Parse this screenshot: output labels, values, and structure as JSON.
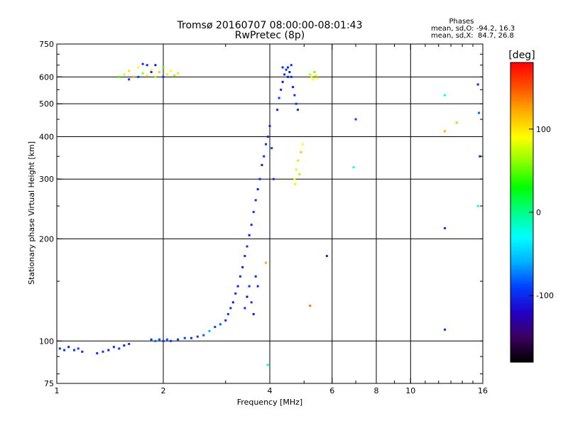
{
  "chart_data": {
    "type": "scatter",
    "title": "Tromsø 20160707 08:00:00-08:01:43",
    "subtitle": "RwPretec (8p)",
    "xlabel": "Frequency [MHz]",
    "ylabel": "Stationary phase Virtual Height [km]",
    "x_scale": "log",
    "y_scale": "log",
    "xlim": [
      1,
      16
    ],
    "ylim": [
      75,
      750
    ],
    "x_ticks": [
      1,
      2,
      4,
      6,
      8,
      10,
      16
    ],
    "y_ticks": [
      75,
      100,
      200,
      300,
      400,
      500,
      600,
      750
    ],
    "grid": true,
    "stats": {
      "heading": "Phases",
      "line1": "mean, sd,O: -94.2, 16.3",
      "line2": "mean, sd,X:  84.7, 26.8"
    },
    "colorbar": {
      "label": "[deg]",
      "range": [
        -180,
        180
      ],
      "ticks": [
        100,
        0,
        -100
      ],
      "palette": [
        "#000000",
        "#3b005e",
        "#2200c8",
        "#0040ff",
        "#00b0ff",
        "#00ffff",
        "#00ff88",
        "#00ff00",
        "#88ff00",
        "#ffff00",
        "#ffb000",
        "#ff5000",
        "#ff0000"
      ]
    },
    "series": [
      {
        "points": [
          [
            1.02,
            95,
            -100
          ],
          [
            1.05,
            94,
            -95
          ],
          [
            1.08,
            96,
            -110
          ],
          [
            1.12,
            94,
            -100
          ],
          [
            1.15,
            95,
            -90
          ],
          [
            1.18,
            93,
            -105
          ],
          [
            1.3,
            92,
            -100
          ],
          [
            1.35,
            93,
            -95
          ],
          [
            1.4,
            94,
            -110
          ],
          [
            1.45,
            96,
            -100
          ],
          [
            1.5,
            95,
            -95
          ],
          [
            1.55,
            97,
            -110
          ],
          [
            1.6,
            98,
            -100
          ]
        ]
      },
      {
        "points": [
          [
            1.85,
            101,
            -100
          ],
          [
            1.9,
            100,
            -80
          ],
          [
            1.95,
            101,
            -90
          ],
          [
            2.0,
            100,
            -100
          ],
          [
            2.05,
            101,
            -85
          ],
          [
            2.1,
            100,
            -95
          ],
          [
            2.2,
            101,
            -100
          ],
          [
            2.3,
            102,
            -90
          ],
          [
            2.4,
            102,
            -100
          ],
          [
            2.5,
            103,
            -95
          ],
          [
            2.6,
            104,
            -85
          ],
          [
            2.7,
            107,
            -60
          ],
          [
            2.8,
            110,
            -90
          ],
          [
            2.9,
            112,
            -80
          ],
          [
            3.0,
            115,
            -100
          ],
          [
            3.05,
            120,
            -95
          ],
          [
            3.1,
            125,
            -100
          ],
          [
            3.15,
            130,
            -110
          ],
          [
            3.2,
            138,
            -100
          ],
          [
            3.25,
            145,
            -105
          ],
          [
            3.3,
            155,
            -100
          ],
          [
            3.35,
            165,
            -110
          ],
          [
            3.4,
            178,
            -100
          ],
          [
            3.45,
            190,
            -100
          ],
          [
            3.5,
            205,
            -110
          ],
          [
            3.55,
            220,
            -100
          ],
          [
            3.6,
            240,
            -95
          ],
          [
            3.65,
            260,
            -100
          ],
          [
            3.7,
            280,
            -105
          ],
          [
            3.75,
            300,
            -100
          ],
          [
            3.8,
            330,
            -110
          ],
          [
            3.85,
            350,
            -100
          ],
          [
            3.9,
            380,
            -95
          ],
          [
            3.95,
            400,
            -100
          ],
          [
            4.0,
            430,
            -100
          ],
          [
            4.05,
            370,
            -95
          ],
          [
            4.1,
            300,
            -100
          ]
        ]
      },
      {
        "points": [
          [
            3.4,
            125,
            -100
          ],
          [
            3.45,
            135,
            -120
          ],
          [
            3.5,
            145,
            -100
          ],
          [
            3.55,
            130,
            -95
          ],
          [
            3.6,
            120,
            -110
          ],
          [
            3.65,
            155,
            -100
          ],
          [
            3.7,
            145,
            -100
          ]
        ]
      },
      {
        "points": [
          [
            4.2,
            480,
            -100
          ],
          [
            4.25,
            520,
            -95
          ],
          [
            4.3,
            550,
            -100
          ],
          [
            4.35,
            580,
            -110
          ],
          [
            4.4,
            610,
            -100
          ],
          [
            4.45,
            630,
            -95
          ],
          [
            4.5,
            640,
            -100
          ],
          [
            4.55,
            620,
            -105
          ],
          [
            4.6,
            600,
            -100
          ],
          [
            4.65,
            560,
            -110
          ],
          [
            4.7,
            530,
            -100
          ],
          [
            4.75,
            500,
            -95
          ],
          [
            4.8,
            480,
            -100
          ],
          [
            4.35,
            640,
            -100
          ],
          [
            4.5,
            600,
            -110
          ],
          [
            4.6,
            650,
            -95
          ]
        ]
      },
      {
        "points": [
          [
            5.2,
            610,
            70
          ],
          [
            5.25,
            600,
            80
          ],
          [
            5.3,
            590,
            90
          ],
          [
            5.35,
            620,
            60
          ],
          [
            5.4,
            605,
            100
          ],
          [
            5.45,
            595,
            85
          ]
        ]
      },
      {
        "points": [
          [
            4.7,
            300,
            90
          ],
          [
            4.75,
            320,
            80
          ],
          [
            4.8,
            340,
            100
          ],
          [
            4.85,
            310,
            70
          ],
          [
            4.9,
            360,
            110
          ],
          [
            4.95,
            380,
            90
          ],
          [
            4.72,
            290,
            95
          ]
        ]
      },
      {
        "points": [
          [
            1.5,
            600,
            40
          ],
          [
            1.55,
            610,
            80
          ],
          [
            1.6,
            625,
            100
          ],
          [
            1.65,
            600,
            120
          ],
          [
            1.7,
            640,
            90
          ],
          [
            1.75,
            615,
            60
          ],
          [
            1.8,
            605,
            100
          ],
          [
            1.85,
            630,
            90
          ],
          [
            1.9,
            600,
            70
          ],
          [
            1.95,
            620,
            110
          ],
          [
            2.0,
            640,
            50
          ],
          [
            2.05,
            610,
            80
          ],
          [
            2.1,
            625,
            90
          ],
          [
            2.15,
            605,
            60
          ],
          [
            2.2,
            615,
            100
          ],
          [
            1.6,
            590,
            -100
          ],
          [
            1.7,
            600,
            -90
          ],
          [
            1.8,
            650,
            -100
          ],
          [
            1.9,
            650,
            -110
          ],
          [
            2.0,
            600,
            -95
          ],
          [
            1.75,
            655,
            -100
          ],
          [
            1.85,
            620,
            -100
          ]
        ]
      },
      {
        "points": [
          [
            7.0,
            450,
            -90
          ],
          [
            6.9,
            325,
            -30
          ],
          [
            5.8,
            178,
            -100
          ],
          [
            5.2,
            127,
            140
          ],
          [
            3.9,
            170,
            120
          ],
          [
            3.95,
            85,
            -20
          ],
          [
            12.5,
            530,
            -30
          ],
          [
            13.5,
            440,
            60
          ],
          [
            15.5,
            570,
            -100
          ],
          [
            15.6,
            470,
            -80
          ],
          [
            15.7,
            350,
            -100
          ],
          [
            12.5,
            215,
            -100
          ],
          [
            12.5,
            108,
            -100
          ],
          [
            12.5,
            415,
            120
          ],
          [
            15.5,
            250,
            -20
          ]
        ]
      }
    ]
  }
}
